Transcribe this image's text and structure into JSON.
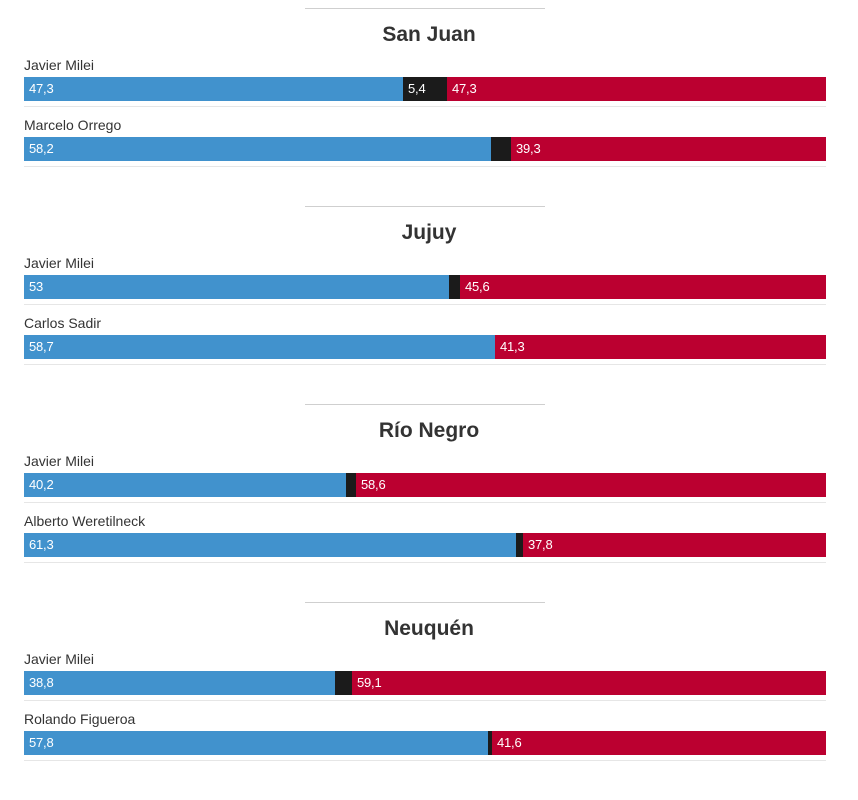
{
  "colors": {
    "segment_a": "#4192cd",
    "segment_b": "#1b1b1b",
    "segment_c": "#bb0030"
  },
  "chart_data": [
    {
      "type": "bar",
      "orientation": "horizontal",
      "stacked": true,
      "title": "San Juan",
      "categories": [
        "Javier Milei",
        "Marcelo Orrego"
      ],
      "series": [
        {
          "color": "#4192cd",
          "values": [
            47.3,
            58.2
          ],
          "labels": [
            "47,3",
            "58,2"
          ]
        },
        {
          "color": "#1b1b1b",
          "values": [
            5.4,
            2.5
          ],
          "labels": [
            "5,4",
            ""
          ]
        },
        {
          "color": "#bb0030",
          "values": [
            47.3,
            39.3
          ],
          "labels": [
            "47,3",
            "39,3"
          ]
        }
      ],
      "xlim": [
        0,
        100
      ]
    },
    {
      "type": "bar",
      "orientation": "horizontal",
      "stacked": true,
      "title": "Jujuy",
      "categories": [
        "Javier Milei",
        "Carlos Sadir"
      ],
      "series": [
        {
          "color": "#4192cd",
          "values": [
            53,
            58.7
          ],
          "labels": [
            "53",
            "58,7"
          ]
        },
        {
          "color": "#1b1b1b",
          "values": [
            1.4,
            0
          ],
          "labels": [
            "",
            ""
          ]
        },
        {
          "color": "#bb0030",
          "values": [
            45.6,
            41.3
          ],
          "labels": [
            "45,6",
            "41,3"
          ]
        }
      ],
      "xlim": [
        0,
        100
      ]
    },
    {
      "type": "bar",
      "orientation": "horizontal",
      "stacked": true,
      "title": "Río Negro",
      "categories": [
        "Javier Milei",
        "Alberto Weretilneck"
      ],
      "series": [
        {
          "color": "#4192cd",
          "values": [
            40.2,
            61.3
          ],
          "labels": [
            "40,2",
            "61,3"
          ]
        },
        {
          "color": "#1b1b1b",
          "values": [
            1.2,
            0.9
          ],
          "labels": [
            "",
            ""
          ]
        },
        {
          "color": "#bb0030",
          "values": [
            58.6,
            37.8
          ],
          "labels": [
            "58,6",
            "37,8"
          ]
        }
      ],
      "xlim": [
        0,
        100
      ]
    },
    {
      "type": "bar",
      "orientation": "horizontal",
      "stacked": true,
      "title": "Neuquén",
      "categories": [
        "Javier Milei",
        "Rolando Figueroa"
      ],
      "series": [
        {
          "color": "#4192cd",
          "values": [
            38.8,
            57.8
          ],
          "labels": [
            "38,8",
            "57,8"
          ]
        },
        {
          "color": "#1b1b1b",
          "values": [
            2.1,
            0.6
          ],
          "labels": [
            "",
            ""
          ]
        },
        {
          "color": "#bb0030",
          "values": [
            59.1,
            41.6
          ],
          "labels": [
            "59,1",
            "41,6"
          ]
        }
      ],
      "xlim": [
        0,
        100
      ]
    }
  ]
}
